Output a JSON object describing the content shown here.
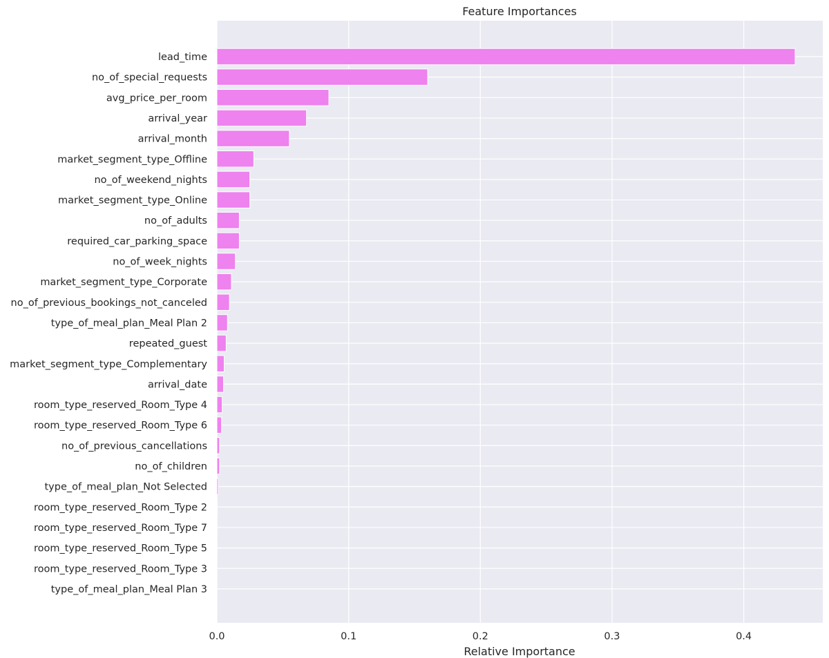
{
  "chart_data": {
    "type": "bar",
    "orientation": "horizontal",
    "title": "Feature Importances",
    "xlabel": "Relative Importance",
    "ylabel": "",
    "xlim": [
      0,
      0.46
    ],
    "xticks": [
      "0.0",
      "0.1",
      "0.2",
      "0.3",
      "0.4"
    ],
    "grid": true,
    "colors": {
      "bar": "#ee82ee",
      "background": "#eaeaf2",
      "grid": "#ffffff"
    },
    "categories": [
      "lead_time",
      "no_of_special_requests",
      "avg_price_per_room",
      "arrival_year",
      "arrival_month",
      "market_segment_type_Offline",
      "no_of_weekend_nights",
      "market_segment_type_Online",
      "no_of_adults",
      "required_car_parking_space",
      "no_of_week_nights",
      "market_segment_type_Corporate",
      "no_of_previous_bookings_not_canceled",
      "type_of_meal_plan_Meal Plan 2",
      "repeated_guest",
      "market_segment_type_Complementary",
      "arrival_date",
      "room_type_reserved_Room_Type 4",
      "room_type_reserved_Room_Type 6",
      "no_of_previous_cancellations",
      "no_of_children",
      "type_of_meal_plan_Not Selected",
      "room_type_reserved_Room_Type 2",
      "room_type_reserved_Room_Type 7",
      "room_type_reserved_Room_Type 5",
      "room_type_reserved_Room_Type 3",
      "type_of_meal_plan_Meal Plan 3"
    ],
    "values": [
      0.439,
      0.16,
      0.085,
      0.068,
      0.055,
      0.028,
      0.025,
      0.025,
      0.017,
      0.017,
      0.014,
      0.011,
      0.0095,
      0.008,
      0.007,
      0.0055,
      0.005,
      0.004,
      0.0035,
      0.002,
      0.002,
      0.001,
      0.0002,
      0.0001,
      0.0001,
      0.0,
      0.0
    ]
  }
}
